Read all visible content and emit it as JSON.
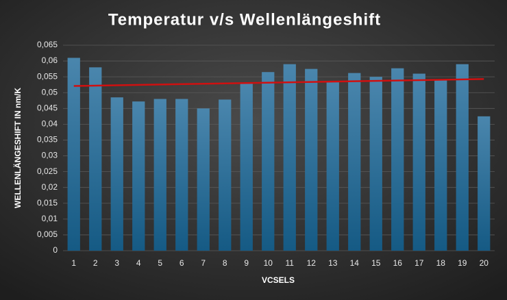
{
  "chart_data": {
    "type": "bar",
    "title": "Temperatur v/s Wellenlängeshift",
    "x_label": "VCSELS",
    "y_label": "WELLENLÄNGESHIFT IN nm/K",
    "categories": [
      "1",
      "2",
      "3",
      "4",
      "5",
      "6",
      "7",
      "8",
      "9",
      "10",
      "11",
      "12",
      "13",
      "14",
      "15",
      "16",
      "17",
      "18",
      "19",
      "20"
    ],
    "values": [
      0.061,
      0.058,
      0.0485,
      0.0472,
      0.048,
      0.048,
      0.045,
      0.0478,
      0.0528,
      0.0565,
      0.059,
      0.0575,
      0.0535,
      0.0562,
      0.055,
      0.0577,
      0.056,
      0.054,
      0.059,
      0.0425
    ],
    "color": "#2a6e98",
    "trendline": {
      "color": "#d01010",
      "values": [
        0.0521,
        0.0543
      ]
    },
    "ylim": [
      0,
      0.065
    ],
    "yticks": [
      0,
      {
        "value": 0.005,
        "label": "0,005"
      },
      {
        "value": 0.01,
        "label": "0,01"
      },
      {
        "value": 0.015,
        "label": "0,015"
      },
      {
        "value": 0.02,
        "label": "0,02"
      },
      {
        "value": 0.025,
        "label": "0,025"
      },
      {
        "value": 0.03,
        "label": "0,03"
      },
      {
        "value": 0.035,
        "label": "0,035"
      },
      {
        "value": 0.04,
        "label": "0,04"
      },
      {
        "value": 0.045,
        "label": "0,045"
      },
      {
        "value": 0.05,
        "label": "0,05"
      },
      {
        "value": 0.055,
        "label": "0,055"
      },
      {
        "value": 0.06,
        "label": "0,06"
      },
      {
        "value": 0.065,
        "label": "0,065"
      }
    ],
    "grid": true
  }
}
